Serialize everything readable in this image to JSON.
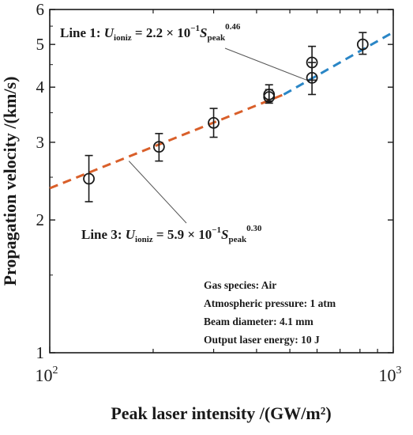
{
  "chart_data": {
    "type": "scatter",
    "title": "",
    "xlabel": "Peak laser intensity /(GW/m²)",
    "ylabel": "Propagation velocity /(km/s)",
    "x_scale": "log",
    "y_scale": "log",
    "xlim": [
      100,
      1000
    ],
    "ylim": [
      1,
      6
    ],
    "x_ticks": [
      {
        "value": 100,
        "base": "10",
        "exp": "2"
      },
      {
        "value": 1000,
        "base": "10",
        "exp": "3"
      }
    ],
    "y_ticks": [
      {
        "value": 1,
        "label": "1"
      },
      {
        "value": 2,
        "label": "2"
      },
      {
        "value": 3,
        "label": "3"
      },
      {
        "value": 4,
        "label": "4"
      },
      {
        "value": 5,
        "label": "5"
      },
      {
        "value": 6,
        "label": "6"
      }
    ],
    "measurements": [
      {
        "x": 130,
        "y": 2.48,
        "err_low": 2.2,
        "err_high": 2.8
      },
      {
        "x": 208,
        "y": 2.93,
        "err_low": 2.72,
        "err_high": 3.14
      },
      {
        "x": 300,
        "y": 3.32,
        "err_low": 3.08,
        "err_high": 3.58
      },
      {
        "x": 435,
        "y": 3.85,
        "err_low": 3.72,
        "err_high": 4.05
      },
      {
        "x": 435,
        "y": 3.8,
        "err_low": 3.68,
        "err_high": 3.95
      },
      {
        "x": 580,
        "y": 4.55,
        "err_low": 4.15,
        "err_high": 4.95
      },
      {
        "x": 580,
        "y": 4.2,
        "err_low": 3.85,
        "err_high": 4.55
      },
      {
        "x": 815,
        "y": 5.0,
        "err_low": 4.75,
        "err_high": 5.32
      }
    ],
    "fits": [
      {
        "name": "Line 3",
        "coef": "5.9 × 10",
        "coef_exp": "−1",
        "power": "0.30",
        "color": "#d95f2a",
        "x_start": 100,
        "x_end": 480,
        "y_start": 2.36,
        "y_end": 3.85
      },
      {
        "name": "Line 1",
        "coef": "2.2 × 10",
        "coef_exp": "−1",
        "power": "0.46",
        "color": "#2a86c6",
        "x_start": 480,
        "x_end": 1000,
        "y_start": 3.85,
        "y_end": 5.33
      }
    ],
    "equation_symbol": "U",
    "equation_sub": "ioniz",
    "variable_symbol": "S",
    "variable_sub": "peak",
    "info_box": [
      "Gas species: Air",
      "Atmospheric pressure: 1 atm",
      "Beam diameter: 4.1 mm",
      "Output laser energy: 10 J"
    ]
  }
}
